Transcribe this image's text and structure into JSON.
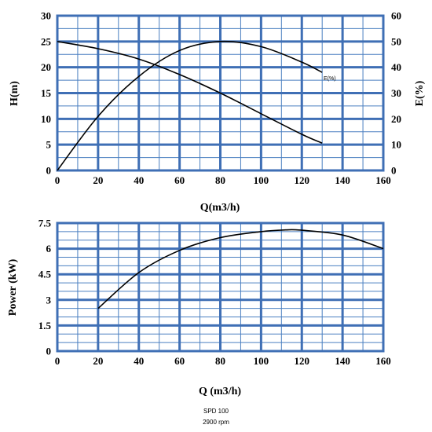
{
  "chart_data": [
    {
      "type": "line",
      "xlabel": "Q(m3/h)",
      "ylabel": "H(m)",
      "y2label": "E(%)",
      "xlim": [
        0,
        160
      ],
      "ylim": [
        0,
        30
      ],
      "y2lim": [
        0,
        60
      ],
      "xticks": [
        "0",
        "20",
        "40",
        "60",
        "80",
        "100",
        "120",
        "140",
        "160"
      ],
      "yticks": [
        "0",
        "5",
        "10",
        "15",
        "20",
        "25",
        "30"
      ],
      "y2ticks": [
        "0",
        "10",
        "20",
        "30",
        "40",
        "50",
        "60"
      ],
      "grid": true,
      "series": [
        {
          "axis": "left",
          "x": [
            0,
            20,
            40,
            60,
            80,
            100,
            120,
            130
          ],
          "y": [
            25,
            23.6,
            21.6,
            18.6,
            15,
            11,
            7,
            5.3
          ]
        },
        {
          "name": "E(%)",
          "axis": "right",
          "x": [
            0,
            20,
            40,
            60,
            80,
            100,
            120,
            130
          ],
          "y": [
            0,
            21,
            36.5,
            46.5,
            50,
            48,
            42,
            38
          ]
        }
      ]
    },
    {
      "type": "line",
      "xlabel": "Q (m3/h)",
      "ylabel": "Power (kW)",
      "xlim": [
        0,
        160
      ],
      "ylim": [
        0,
        7.5
      ],
      "xticks": [
        "0",
        "20",
        "40",
        "60",
        "80",
        "100",
        "120",
        "140",
        "160"
      ],
      "yticks": [
        "0",
        "1.5",
        "3",
        "4.5",
        "6",
        "7.5"
      ],
      "grid": true,
      "series": [
        {
          "x": [
            20,
            40,
            60,
            80,
            100,
            112,
            120,
            140,
            160
          ],
          "y": [
            2.5,
            4.6,
            5.9,
            6.65,
            7.0,
            7.1,
            7.08,
            6.8,
            6.0
          ]
        }
      ]
    }
  ],
  "footer": {
    "model": "SPD 100",
    "speed": "2900 rpm"
  }
}
